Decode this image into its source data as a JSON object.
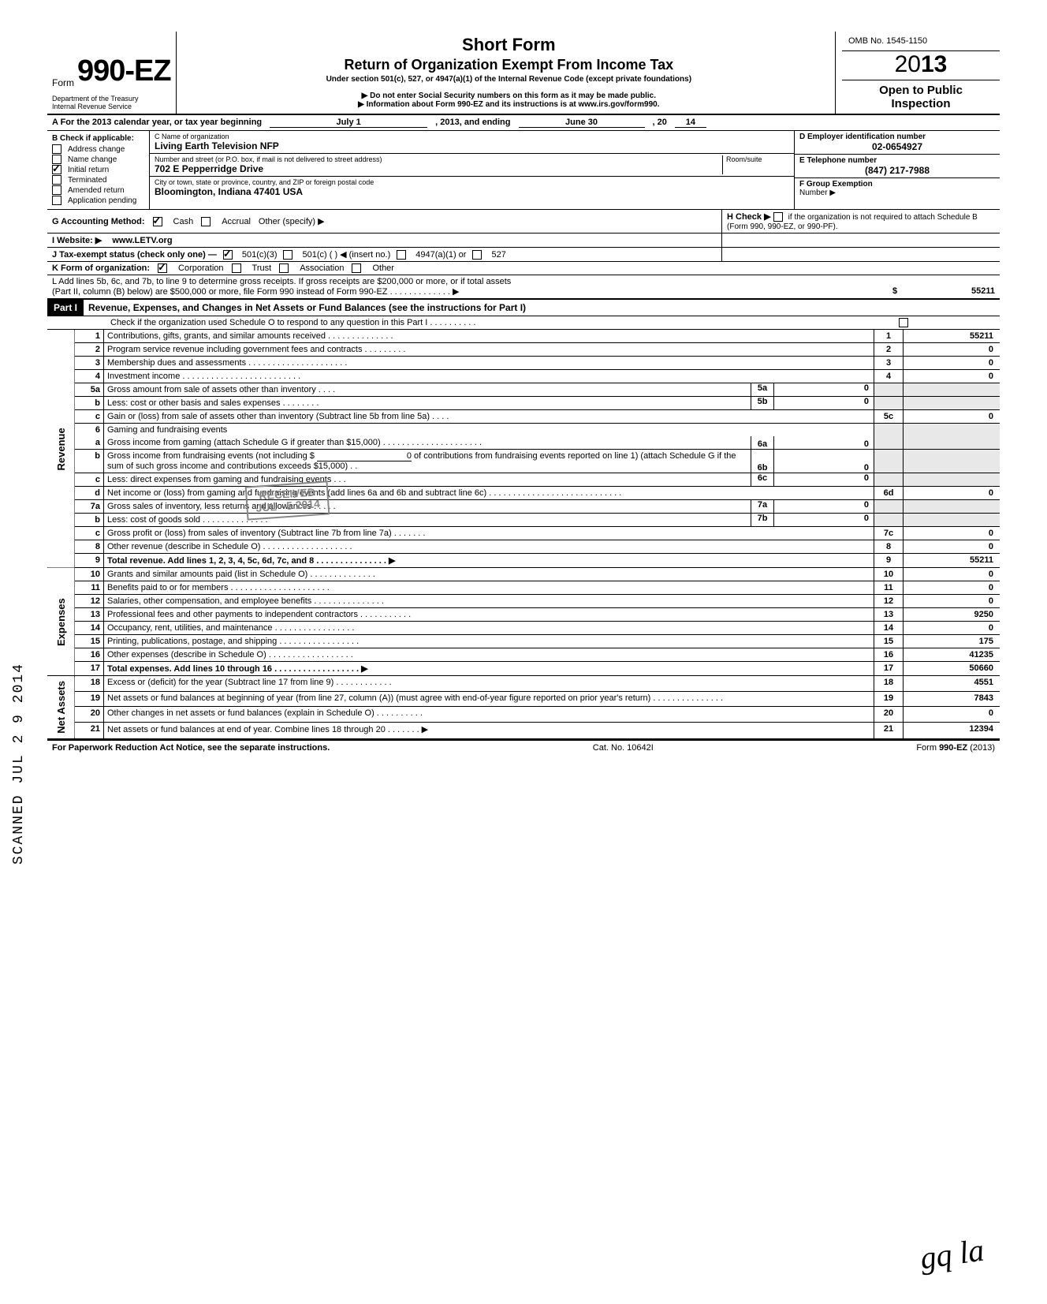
{
  "form": {
    "form_word": "Form",
    "form_number": "990-EZ",
    "short_title": "Short Form",
    "long_title": "Return of Organization Exempt From Income Tax",
    "subtitle": "Under section 501(c), 527, or 4947(a)(1) of the Internal Revenue Code (except private foundations)",
    "ssn_notice": "▶ Do not enter Social Security numbers on this form as it may be made public.",
    "info_notice": "▶ Information about Form 990-EZ and its instructions is at www.irs.gov/form990.",
    "dept1": "Department of the Treasury",
    "dept2": "Internal Revenue Service",
    "omb": "OMB No. 1545-1150",
    "year_prefix": "20",
    "year_bold": "13",
    "open_public_1": "Open to Public",
    "open_public_2": "Inspection"
  },
  "period": {
    "label": "A  For the 2013 calendar year, or tax year beginning",
    "begin": "July 1",
    "mid": ", 2013, and ending",
    "end_month": "June 30",
    "end_year_prefix": ", 20",
    "end_year": "14"
  },
  "header": {
    "b_label": "B  Check if applicable:",
    "checks": [
      {
        "label": "Address change",
        "checked": false
      },
      {
        "label": "Name change",
        "checked": false
      },
      {
        "label": "Initial return",
        "checked": true
      },
      {
        "label": "Terminated",
        "checked": false
      },
      {
        "label": "Amended return",
        "checked": false
      },
      {
        "label": "Application pending",
        "checked": false
      }
    ],
    "c_label": "C  Name of organization",
    "org_name": "Living Earth Television NFP",
    "addr_label": "Number and street (or P.O. box, if mail is not delivered to street address)",
    "room_label": "Room/suite",
    "addr": "702 E Pepperridge Drive",
    "city_label": "City or town, state or province, country, and ZIP or foreign postal code",
    "city": "Bloomington, Indiana  47401  USA",
    "d_label": "D Employer identification number",
    "ein": "02-0654927",
    "e_label": "E  Telephone number",
    "phone": "(847) 217-7988",
    "f_label": "F  Group Exemption",
    "f_label2": "Number  ▶"
  },
  "g_row": {
    "g_label": "G  Accounting Method:",
    "cash": "Cash",
    "accrual": "Accrual",
    "other": "Other (specify) ▶",
    "h_label": "H  Check ▶",
    "h_text": "if the organization is not required to attach Schedule B (Form 990, 990-EZ, or 990-PF)."
  },
  "i_row": {
    "label": "I   Website: ▶",
    "value": "www.LETV.org"
  },
  "j_row": {
    "label": "J  Tax-exempt status (check only one) —",
    "o1": "501(c)(3)",
    "o2": "501(c) (          ) ◀ (insert no.)",
    "o3": "4947(a)(1) or",
    "o4": "527"
  },
  "k_row": {
    "label": "K  Form of organization:",
    "corp": "Corporation",
    "trust": "Trust",
    "assoc": "Association",
    "other": "Other"
  },
  "l_row": {
    "text1": "L  Add lines 5b, 6c, and 7b, to line 9 to determine gross receipts. If gross receipts are $200,000 or more, or if total assets",
    "text2": "(Part II, column (B) below) are $500,000 or more, file Form 990 instead of Form 990-EZ .   .   .   .   .   .   .   .   .   .   .   .   .    ▶",
    "dollar": "$",
    "amount": "55211"
  },
  "part1": {
    "tag": "Part I",
    "title": "Revenue, Expenses, and Changes in Net Assets or Fund Balances (see the instructions for Part I)",
    "sched_o": "Check if the organization used Schedule O to respond to any question in this Part I  .   .   .   .   .   .   .   .   .   ."
  },
  "sections": {
    "revenue": "Revenue",
    "expenses": "Expenses",
    "netassets": "Net Assets"
  },
  "lines": {
    "l1": {
      "n": "1",
      "t": "Contributions, gifts, grants, and similar amounts received .   .   .   .   .   .   .   .   .   .   .   .   .   .",
      "box": "1",
      "amt": "55211"
    },
    "l2": {
      "n": "2",
      "t": "Program service revenue including government fees and contracts    .   .   .   .   .   .   .   .   .",
      "box": "2",
      "amt": "0"
    },
    "l3": {
      "n": "3",
      "t": "Membership dues and assessments .   .   .   .   .   .   .   .   .   .   .   .   .   .   .   .   .   .   .   .   .",
      "box": "3",
      "amt": "0"
    },
    "l4": {
      "n": "4",
      "t": "Investment income    .   .   .   .   .   .   .   .   .   .   .   .   .   .   .   .   .   .   .   .   .   .   .   .   .",
      "box": "4",
      "amt": "0"
    },
    "l5a": {
      "n": "5a",
      "t": "Gross amount from sale of assets other than inventory    .   .   .   .",
      "ibox": "5a",
      "iamt": "0"
    },
    "l5b": {
      "n": "b",
      "t": "Less: cost or other basis and sales expenses .   .   .   .   .   .   .   .",
      "ibox": "5b",
      "iamt": "0"
    },
    "l5c": {
      "n": "c",
      "t": "Gain or (loss) from sale of assets other than inventory (Subtract line 5b from line 5a)  .   .   .   .",
      "box": "5c",
      "amt": "0"
    },
    "l6": {
      "n": "6",
      "t": "Gaming and fundraising events"
    },
    "l6a": {
      "n": "a",
      "t": "Gross income from gaming (attach Schedule G if greater than $15,000) .   .   .   .   .   .   .   .   .   .   .   .   .   .   .   .   .   .   .   .   .",
      "ibox": "6a",
      "iamt": "0"
    },
    "l6b": {
      "n": "b",
      "t": "Gross income from fundraising events (not including  $",
      "t2": "of contributions from fundraising events reported on line 1) (attach Schedule G if the sum of such gross income and contributions exceeds $15,000) .   .",
      "ibox": "6b",
      "iamt": "0",
      "iamt0": "0"
    },
    "l6c": {
      "n": "c",
      "t": "Less: direct expenses from gaming and fundraising events    .   .   .",
      "ibox": "6c",
      "iamt": "0"
    },
    "l6d": {
      "n": "d",
      "t": "Net income or (loss) from gaming and fundraising events (add lines 6a and 6b and subtract line 6c)     .   .   .   .   .   .   .   .   .   .   .   .   .   .   .   .   .   .   .   .   .   .   .   .   .   .   .   .",
      "box": "6d",
      "amt": "0"
    },
    "l7a": {
      "n": "7a",
      "t": "Gross sales of inventory, less returns and allowances   .   .   .   .   .",
      "ibox": "7a",
      "iamt": "0"
    },
    "l7b": {
      "n": "b",
      "t": "Less: cost of goods sold   .   .   .   .   .   .   .   .   .   .   .   .   .   .",
      "ibox": "7b",
      "iamt": "0"
    },
    "l7c": {
      "n": "c",
      "t": "Gross profit or (loss) from sales of inventory (Subtract line 7b from line 7a)   .   .   .   .   .   .   .",
      "box": "7c",
      "amt": "0"
    },
    "l8": {
      "n": "8",
      "t": "Other revenue (describe in Schedule O)  .   .   .   .   .   .   .   .   .   .   .   .   .   .   .   .   .   .   .",
      "box": "8",
      "amt": "0"
    },
    "l9": {
      "n": "9",
      "t": "Total revenue. Add lines 1, 2, 3, 4, 5c, 6d, 7c, and 8   .   .   .   .   .   .   .   .   .   .   .   .   .   .   . ▶",
      "box": "9",
      "amt": "55211"
    },
    "l10": {
      "n": "10",
      "t": "Grants and similar amounts paid (list in Schedule O)    .   .   .   .   .   .   .   .   .   .   .   .   .   .",
      "box": "10",
      "amt": "0"
    },
    "l11": {
      "n": "11",
      "t": "Benefits paid to or for members   .   .   .   .   .   .   .   .   .   .   .   .   .   .   .   .   .   .   .   .   .",
      "box": "11",
      "amt": "0"
    },
    "l12": {
      "n": "12",
      "t": "Salaries, other compensation, and employee benefits .   .   .   .   .   .   .   .   .   .   .   .   .   .   .",
      "box": "12",
      "amt": "0"
    },
    "l13": {
      "n": "13",
      "t": "Professional fees and other payments to independent contractors .   .   .   .   .   .   .   .   .   .   .",
      "box": "13",
      "amt": "9250"
    },
    "l14": {
      "n": "14",
      "t": "Occupancy, rent, utilities, and maintenance    .   .   .   .   .   .   .   .   .   .   .   .   .   .   .   .   .",
      "box": "14",
      "amt": "0"
    },
    "l15": {
      "n": "15",
      "t": "Printing, publications, postage, and shipping .   .   .   .   .   .   .   .   .   .   .   .   .   .   .   .   .",
      "box": "15",
      "amt": "175"
    },
    "l16": {
      "n": "16",
      "t": "Other expenses (describe in Schedule O)  .   .   .   .   .   .   .   .   .   .   .   .   .   .   .   .   .   .",
      "box": "16",
      "amt": "41235"
    },
    "l17": {
      "n": "17",
      "t": "Total expenses. Add lines 10 through 16   .   .   .   .   .   .   .   .   .   .   .   .   .   .   .   .   .   . ▶",
      "box": "17",
      "amt": "50660"
    },
    "l18": {
      "n": "18",
      "t": "Excess or (deficit) for the year (Subtract line 17 from line 9)    .   .   .   .   .   .   .   .   .   .   .   .",
      "box": "18",
      "amt": "4551"
    },
    "l19": {
      "n": "19",
      "t": "Net assets or fund balances at beginning of year (from line 27, column (A)) (must agree with end-of-year figure reported on prior year's return)     .   .   .   .   .   .   .   .   .   .   .   .   .   .   .",
      "box": "19",
      "amt": "7843"
    },
    "l20": {
      "n": "20",
      "t": "Other changes in net assets or fund balances (explain in Schedule O) .   .   .   .   .   .   .   .   .   .",
      "box": "20",
      "amt": "0"
    },
    "l21": {
      "n": "21",
      "t": "Net assets or fund balances at end of year. Combine lines 18 through 20    .   .   .   .   .   .   .  ▶",
      "box": "21",
      "amt": "12394"
    }
  },
  "stamp": {
    "line1": "RECEIVED",
    "line2": "JUL - 5 2014"
  },
  "footer": {
    "left": "For Paperwork Reduction Act Notice, see the separate instructions.",
    "mid": "Cat. No. 10642I",
    "right": "Form 990-EZ (2013)"
  },
  "scanned": "SCANNED  JUL 2 9 2014",
  "sig": "gq  la",
  "colors": {
    "text": "#000000",
    "bg": "#ffffff",
    "shade": "#e8e8e8",
    "stamp": "#888888"
  }
}
